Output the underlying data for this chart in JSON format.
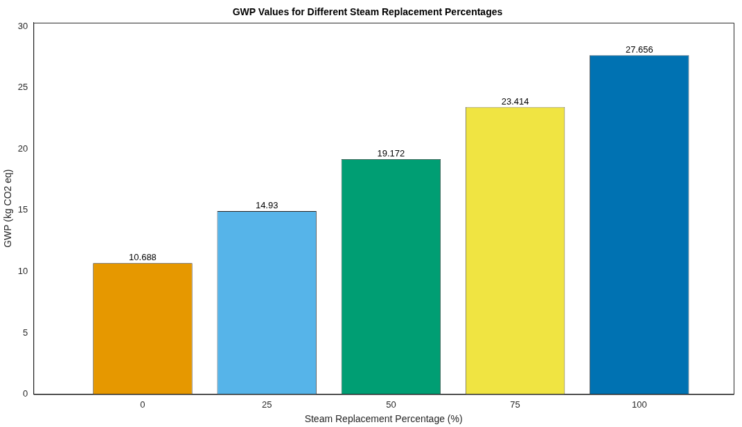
{
  "chart_data": {
    "type": "bar",
    "title": "GWP Values for Different Steam Replacement Percentages",
    "xlabel": "Steam Replacement Percentage (%)",
    "ylabel": "GWP (kg CO2 eq)",
    "x": [
      0,
      25,
      50,
      75,
      100
    ],
    "values": [
      10.688,
      14.93,
      19.172,
      23.414,
      27.656
    ],
    "colors": [
      "#e69800",
      "#56b4e9",
      "#009e73",
      "#f0e442",
      "#0072b2"
    ],
    "xlim": [
      -22,
      119
    ],
    "xticks": [
      0,
      25,
      50,
      75,
      100
    ],
    "ylim": [
      0,
      30.3
    ],
    "yticks": [
      0,
      5,
      10,
      15,
      20,
      25,
      30
    ],
    "data_labels": true,
    "grid": false,
    "legend": false
  }
}
